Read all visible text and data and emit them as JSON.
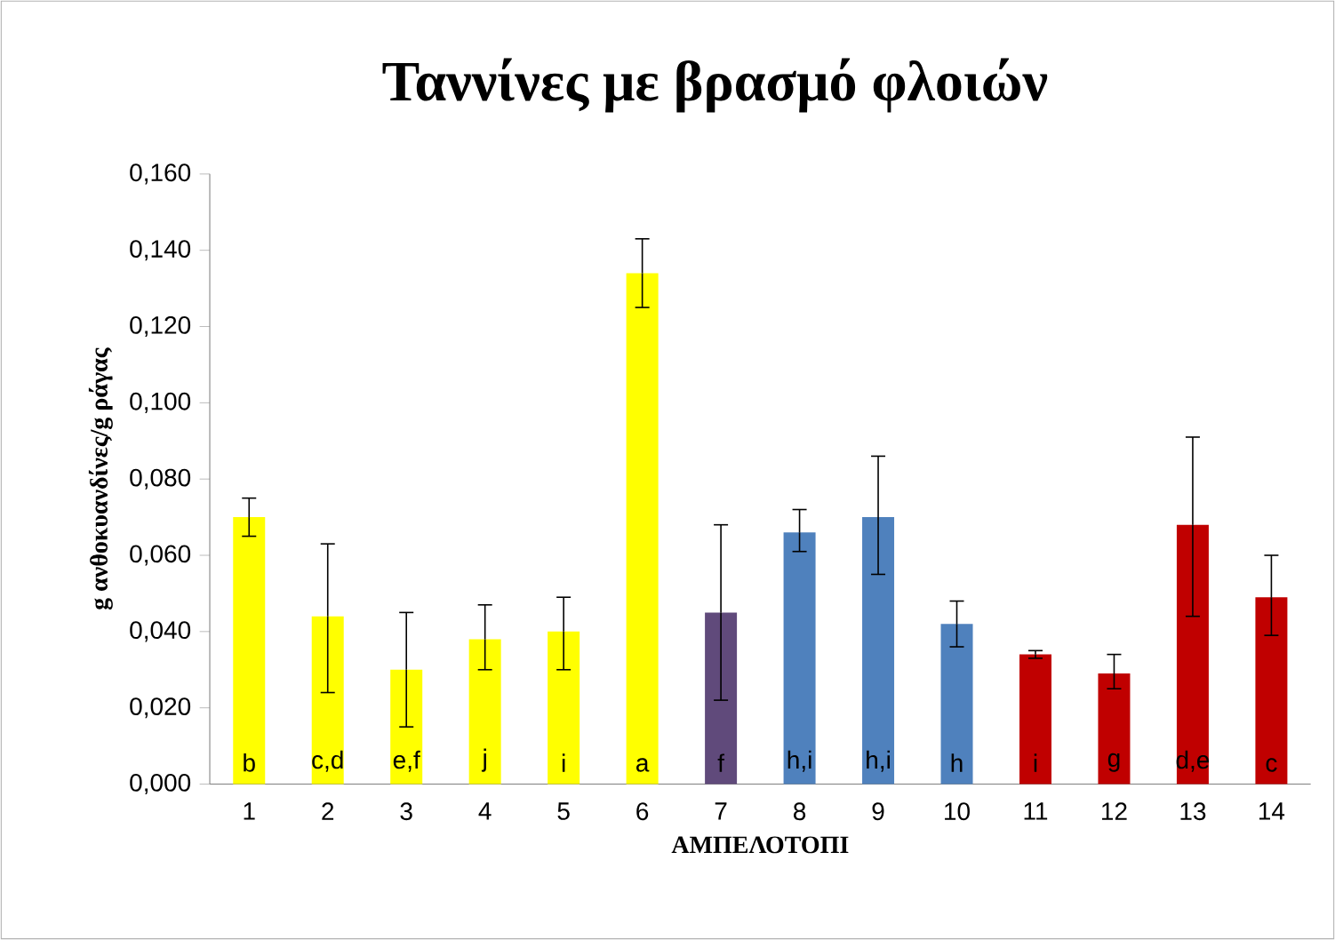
{
  "chart_data": {
    "type": "bar",
    "title": "Ταννίνες με βρασμό φλοιών",
    "xlabel": "ΑΜΠΕΛΟΤΟΠΙ",
    "ylabel": "g ανθοκυανδίνες/g ράγας",
    "categories": [
      "1",
      "2",
      "3",
      "4",
      "5",
      "6",
      "7",
      "8",
      "9",
      "10",
      "11",
      "12",
      "13",
      "14"
    ],
    "values": [
      0.07,
      0.044,
      0.03,
      0.038,
      0.04,
      0.134,
      0.045,
      0.066,
      0.07,
      0.042,
      0.034,
      0.029,
      0.068,
      0.049
    ],
    "errors": [
      [
        0.065,
        0.075
      ],
      [
        0.024,
        0.063
      ],
      [
        0.015,
        0.045
      ],
      [
        0.03,
        0.047
      ],
      [
        0.03,
        0.049
      ],
      [
        0.125,
        0.143
      ],
      [
        0.022,
        0.068
      ],
      [
        0.061,
        0.072
      ],
      [
        0.055,
        0.086
      ],
      [
        0.036,
        0.048
      ],
      [
        0.033,
        0.035
      ],
      [
        0.025,
        0.034
      ],
      [
        0.044,
        0.091
      ],
      [
        0.039,
        0.06
      ]
    ],
    "colors": [
      "#ffff00",
      "#ffff00",
      "#ffff00",
      "#ffff00",
      "#ffff00",
      "#ffff00",
      "#604a7b",
      "#4f81bd",
      "#4f81bd",
      "#4f81bd",
      "#c00000",
      "#c00000",
      "#c00000",
      "#c00000"
    ],
    "ylim": [
      0,
      0.16
    ],
    "yticks": [
      {
        "value": 0,
        "label": "0,000"
      },
      {
        "value": 0.02,
        "label": "0,020"
      },
      {
        "value": 0.04,
        "label": "0,040"
      },
      {
        "value": 0.06,
        "label": "0,060"
      },
      {
        "value": 0.08,
        "label": "0,080"
      },
      {
        "value": 0.1,
        "label": "0,100"
      },
      {
        "value": 0.12,
        "label": "0,120"
      },
      {
        "value": 0.14,
        "label": "0,140"
      },
      {
        "value": 0.16,
        "label": "0,160"
      }
    ],
    "annotations": [
      "b",
      "c,d",
      "e,f",
      "j",
      "i",
      "a",
      "f",
      "h,i",
      "h,i",
      "h",
      "i",
      "g",
      "d,e",
      "c"
    ],
    "grid": false
  }
}
